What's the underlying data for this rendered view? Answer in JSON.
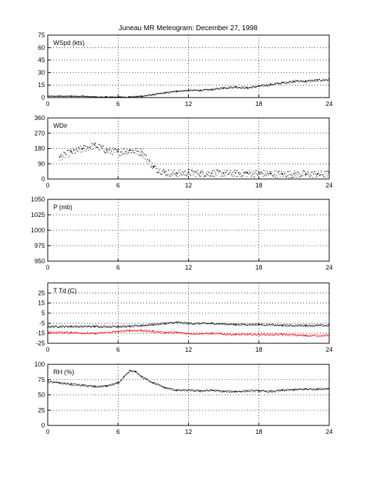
{
  "title": "Juneau MR Meteogram:   December 27, 1998",
  "chart_data": [
    {
      "type": "scatter",
      "label": "WSpd (kts)",
      "x_ticks": [
        "0",
        "6",
        "12",
        "18",
        "24"
      ],
      "y_ticks": [
        "0",
        "15",
        "30",
        "45",
        "60",
        "75"
      ],
      "xlim": [
        0,
        24
      ],
      "ylim": [
        0,
        75
      ],
      "grid": true,
      "series": [
        {
          "color": "#000000",
          "x": [
            0,
            1,
            2,
            3,
            4,
            5,
            6,
            7,
            8,
            9,
            10,
            11,
            12,
            13,
            14,
            15,
            16,
            17,
            18,
            19,
            20,
            21,
            22,
            23,
            24
          ],
          "y": [
            2,
            2,
            2,
            2,
            1,
            1,
            1,
            1,
            2,
            4,
            6,
            8,
            9,
            9,
            10,
            12,
            13,
            12,
            14,
            16,
            18,
            20,
            20,
            21,
            22
          ]
        }
      ]
    },
    {
      "type": "scatter",
      "label": "WDir",
      "x_ticks": [
        "0",
        "6",
        "12",
        "18",
        "24"
      ],
      "y_ticks": [
        "0",
        "90",
        "180",
        "270",
        "360"
      ],
      "xlim": [
        0,
        24
      ],
      "ylim": [
        0,
        360
      ],
      "grid": true,
      "series": [
        {
          "color": "#000000",
          "x": [
            1,
            2,
            3,
            4,
            5,
            6,
            7,
            8,
            9,
            10,
            11,
            12,
            13,
            14,
            15,
            16,
            17,
            18,
            19,
            20,
            21,
            22,
            23,
            24
          ],
          "y": [
            130,
            160,
            180,
            200,
            170,
            160,
            170,
            160,
            70,
            40,
            35,
            40,
            35,
            35,
            35,
            35,
            35,
            35,
            32,
            30,
            30,
            30,
            30,
            30
          ]
        }
      ]
    },
    {
      "type": "line",
      "label": "P (mb)",
      "x_ticks": [
        "0",
        "6",
        "12",
        "18",
        "24"
      ],
      "y_ticks": [
        "950",
        "975",
        "1000",
        "1025",
        "1050"
      ],
      "xlim": [
        0,
        24
      ],
      "ylim": [
        950,
        1050
      ],
      "grid": true,
      "series": []
    },
    {
      "type": "scatter",
      "label": "T Td (C)",
      "x_ticks": [
        "0",
        "6",
        "12",
        "18",
        "24"
      ],
      "y_ticks": [
        "-25",
        "-15",
        "-5",
        "5",
        "15",
        "25"
      ],
      "xlim": [
        0,
        24
      ],
      "ylim": [
        -25,
        35
      ],
      "grid": true,
      "series": [
        {
          "color": "#000000",
          "x": [
            0,
            2,
            4,
            6,
            7,
            8,
            9,
            10,
            11,
            12,
            14,
            16,
            18,
            20,
            22,
            24
          ],
          "y": [
            -8,
            -8,
            -8,
            -8,
            -8,
            -7,
            -6,
            -5,
            -4,
            -5,
            -5,
            -6,
            -6,
            -7,
            -7,
            -7
          ]
        },
        {
          "color": "#ff0000",
          "x": [
            0,
            2,
            4,
            6,
            7,
            8,
            9,
            10,
            11,
            12,
            14,
            16,
            18,
            20,
            22,
            24
          ],
          "y": [
            -14,
            -14,
            -15,
            -13,
            -12,
            -12,
            -13,
            -14,
            -14,
            -15,
            -15,
            -16,
            -16,
            -16,
            -17,
            -17
          ]
        }
      ]
    },
    {
      "type": "scatter",
      "label": "RH (%)",
      "x_ticks": [
        "0",
        "6",
        "12",
        "18",
        "24"
      ],
      "y_ticks": [
        "0",
        "25",
        "50",
        "75",
        "100"
      ],
      "xlim": [
        0,
        24
      ],
      "ylim": [
        0,
        100
      ],
      "grid": true,
      "series": [
        {
          "color": "#000000",
          "x": [
            0,
            1,
            2,
            3,
            4,
            5,
            6,
            6.5,
            7,
            7.5,
            8,
            9,
            10,
            11,
            12,
            13,
            14,
            15,
            16,
            17,
            18,
            19,
            20,
            21,
            22,
            23,
            24
          ],
          "y": [
            72,
            70,
            68,
            66,
            64,
            65,
            70,
            80,
            90,
            88,
            80,
            70,
            62,
            58,
            58,
            57,
            58,
            56,
            56,
            57,
            57,
            56,
            58,
            59,
            60,
            60,
            61
          ]
        }
      ]
    }
  ]
}
